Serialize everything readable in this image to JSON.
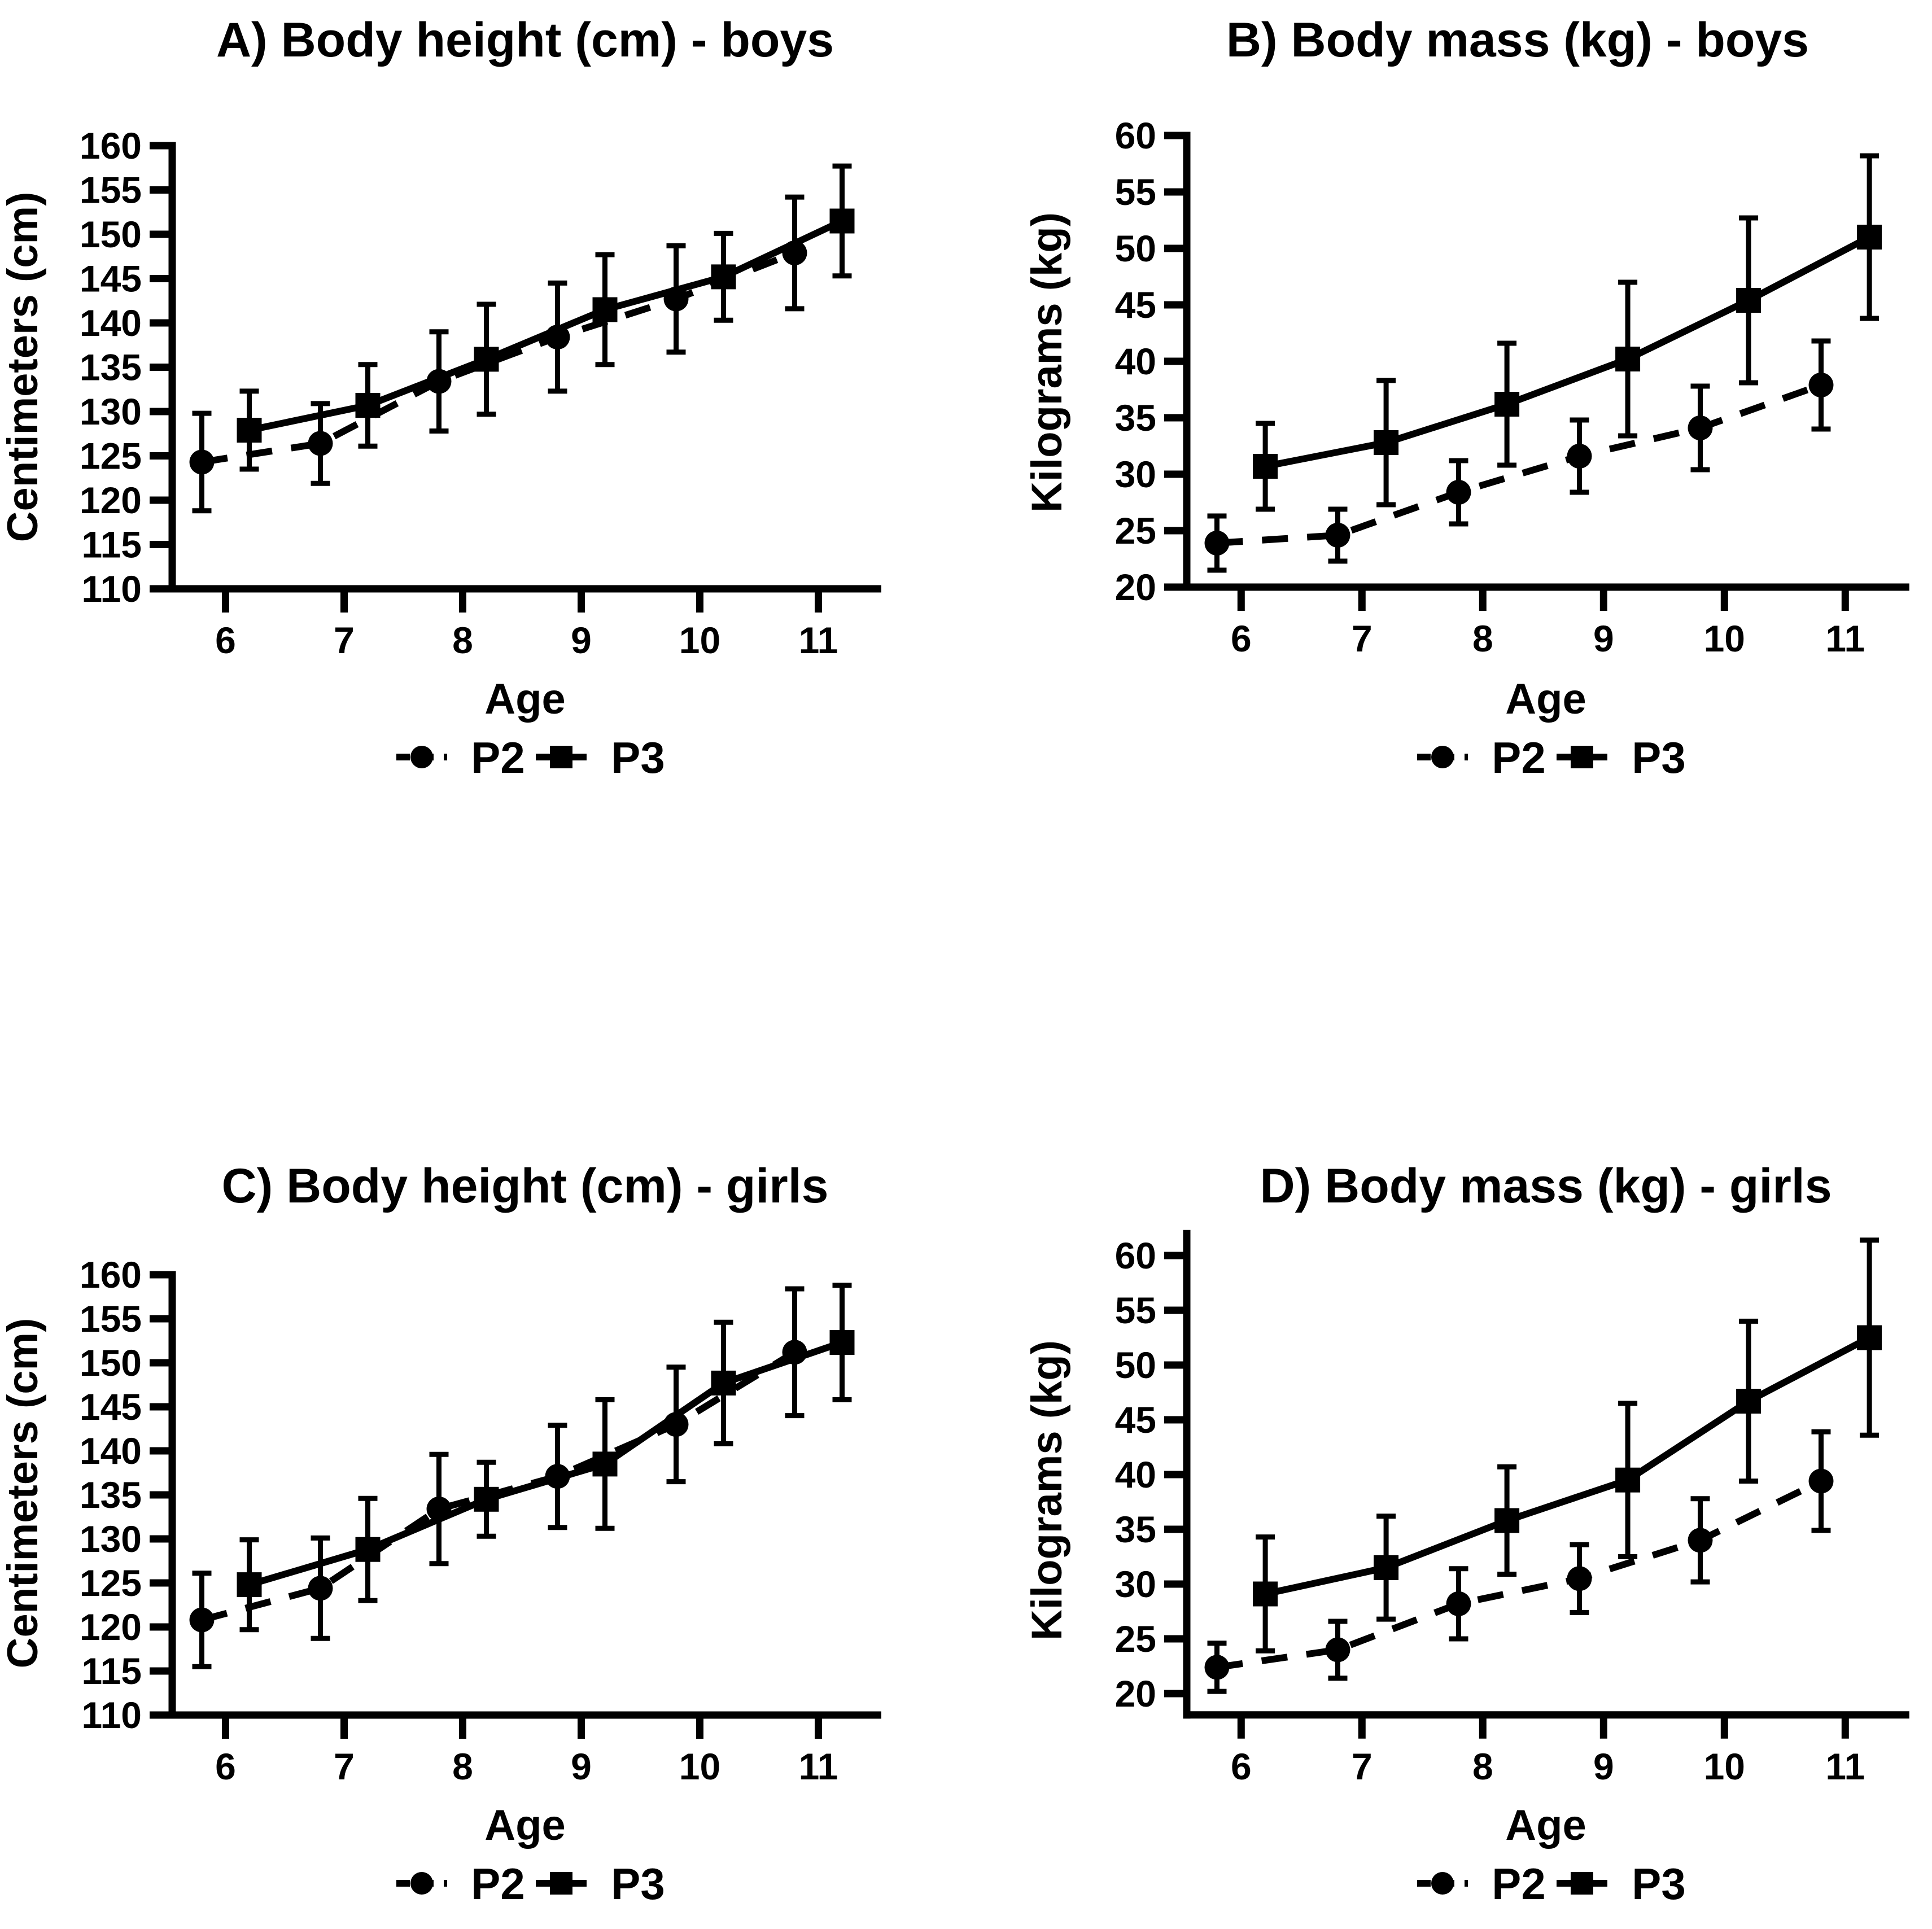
{
  "figure": {
    "background": "#ffffff",
    "ink": "#000000",
    "legend_p2_label": "P2",
    "legend_p3_label": "P3"
  },
  "chart_data": [
    {
      "id": "A",
      "type": "line",
      "title": "A) Body height (cm) - boys",
      "xlabel": "Age",
      "ylabel": "Centimeters (cm)",
      "xlim": [
        5.5,
        11.5
      ],
      "xticks": [
        6,
        7,
        8,
        9,
        10,
        11
      ],
      "ylim": [
        110,
        160
      ],
      "yticks": [
        110,
        115,
        120,
        125,
        130,
        135,
        140,
        145,
        150,
        155,
        160
      ],
      "axis_bottom_value": 110,
      "axis_top_value": 160,
      "grid": false,
      "legend_position": "bottom",
      "error_bars": "sd",
      "series": [
        {
          "name": "P2",
          "marker": "circle",
          "line": "dashed",
          "x": [
            5.8,
            6.8,
            7.8,
            8.8,
            9.8,
            10.8
          ],
          "y": [
            124.3,
            126.4,
            133.4,
            138.4,
            142.7,
            147.9
          ],
          "err": [
            5.5,
            4.5,
            5.6,
            6.1,
            6.0,
            6.3
          ]
        },
        {
          "name": "P3",
          "marker": "square",
          "line": "solid",
          "x": [
            6.2,
            7.2,
            8.2,
            9.2,
            10.2,
            11.2
          ],
          "y": [
            127.9,
            130.7,
            135.9,
            141.5,
            145.2,
            151.5
          ],
          "err": [
            4.4,
            4.6,
            6.2,
            6.2,
            4.9,
            6.2
          ]
        }
      ]
    },
    {
      "id": "B",
      "type": "line",
      "title": "B) Body mass (kg) - boys",
      "xlabel": "Age",
      "ylabel": "Kilograms (kg)",
      "xlim": [
        5.5,
        11.5
      ],
      "xticks": [
        6,
        7,
        8,
        9,
        10,
        11
      ],
      "ylim": [
        20,
        60
      ],
      "yticks": [
        20,
        25,
        30,
        35,
        40,
        45,
        50,
        55,
        60
      ],
      "axis_bottom_value": 20,
      "axis_top_value": 60,
      "grid": false,
      "legend_position": "bottom",
      "error_bars": "sd",
      "series": [
        {
          "name": "P2",
          "marker": "circle",
          "line": "dashed",
          "x": [
            5.8,
            6.8,
            7.8,
            8.8,
            9.8,
            10.8
          ],
          "y": [
            23.9,
            24.6,
            28.4,
            31.6,
            34.1,
            37.9
          ],
          "err": [
            2.4,
            2.3,
            2.8,
            3.2,
            3.7,
            3.9
          ]
        },
        {
          "name": "P3",
          "marker": "square",
          "line": "solid",
          "x": [
            6.2,
            7.2,
            8.2,
            9.2,
            10.2,
            11.2
          ],
          "y": [
            30.7,
            32.8,
            36.2,
            40.2,
            45.4,
            51.0
          ],
          "err": [
            3.8,
            5.5,
            5.4,
            6.8,
            7.3,
            7.2
          ]
        }
      ]
    },
    {
      "id": "C",
      "type": "line",
      "title": "C) Body height (cm) - girls",
      "xlabel": "Age",
      "ylabel": "Centimeters (cm)",
      "xlim": [
        5.5,
        11.5
      ],
      "xticks": [
        6,
        7,
        8,
        9,
        10,
        11
      ],
      "ylim": [
        110,
        160
      ],
      "yticks": [
        110,
        115,
        120,
        125,
        130,
        135,
        140,
        145,
        150,
        155,
        160
      ],
      "axis_bottom_value": 110,
      "axis_top_value": 160,
      "grid": false,
      "legend_position": "bottom",
      "error_bars": "sd",
      "series": [
        {
          "name": "P2",
          "marker": "circle",
          "line": "dashed",
          "x": [
            5.8,
            6.8,
            7.8,
            8.8,
            9.8,
            10.8
          ],
          "y": [
            120.8,
            124.4,
            133.4,
            137.1,
            143.0,
            151.2
          ],
          "err": [
            5.3,
            5.7,
            6.2,
            5.8,
            6.5,
            7.2
          ]
        },
        {
          "name": "P3",
          "marker": "square",
          "line": "solid",
          "x": [
            6.2,
            7.2,
            8.2,
            9.2,
            10.2,
            11.2
          ],
          "y": [
            124.8,
            128.8,
            134.5,
            138.5,
            147.7,
            152.3
          ],
          "err": [
            5.1,
            5.8,
            4.2,
            7.3,
            6.9,
            6.5
          ]
        }
      ]
    },
    {
      "id": "D",
      "type": "line",
      "title": "D) Body mass (kg) - girls",
      "xlabel": "Age",
      "ylabel": "Kilograms (kg)",
      "xlim": [
        5.5,
        11.5
      ],
      "xticks": [
        6,
        7,
        8,
        9,
        10,
        11
      ],
      "ylim": [
        20,
        60
      ],
      "yticks": [
        20,
        25,
        30,
        35,
        40,
        45,
        50,
        55,
        60
      ],
      "axis_bottom_value": 18.05,
      "axis_top_value": 62,
      "grid": false,
      "legend_position": "bottom",
      "error_bars": "sd",
      "series": [
        {
          "name": "P2",
          "marker": "circle",
          "line": "dashed",
          "x": [
            5.8,
            6.8,
            7.8,
            8.8,
            9.8,
            10.8
          ],
          "y": [
            22.4,
            24.0,
            28.2,
            30.5,
            34.0,
            39.4
          ],
          "err": [
            2.2,
            2.6,
            3.2,
            3.1,
            3.8,
            4.5
          ]
        },
        {
          "name": "P3",
          "marker": "square",
          "line": "solid",
          "x": [
            6.2,
            7.2,
            8.2,
            9.2,
            10.2,
            11.2
          ],
          "y": [
            29.1,
            31.5,
            35.8,
            39.5,
            46.7,
            52.5
          ],
          "err": [
            5.2,
            4.7,
            4.9,
            7.0,
            7.3,
            8.9
          ]
        }
      ]
    }
  ]
}
